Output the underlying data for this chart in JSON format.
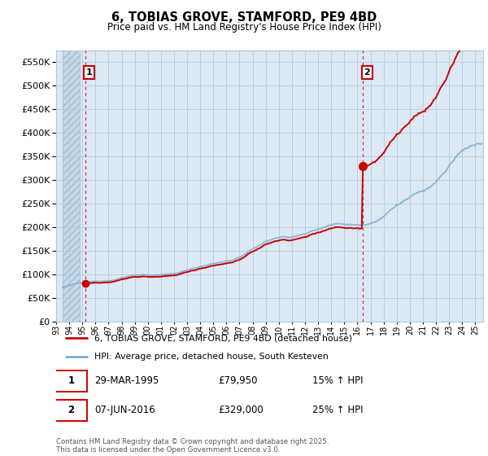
{
  "title": "6, TOBIAS GROVE, STAMFORD, PE9 4BD",
  "subtitle": "Price paid vs. HM Land Registry's House Price Index (HPI)",
  "ylim": [
    0,
    575000
  ],
  "yticks": [
    0,
    50000,
    100000,
    150000,
    200000,
    250000,
    300000,
    350000,
    400000,
    450000,
    500000,
    550000
  ],
  "ytick_labels": [
    "£0",
    "£50K",
    "£100K",
    "£150K",
    "£200K",
    "£250K",
    "£300K",
    "£350K",
    "£400K",
    "£450K",
    "£500K",
    "£550K"
  ],
  "legend_line1": "6, TOBIAS GROVE, STAMFORD, PE9 4BD (detached house)",
  "legend_line2": "HPI: Average price, detached house, South Kesteven",
  "line1_color": "#cc0000",
  "line2_color": "#7aadcc",
  "background_color": "#dce9f5",
  "hatch_area_color": "#c8d8e8",
  "grid_color": "#b8cfe0",
  "t1_year": 1995.23,
  "t1_price": 79950,
  "t2_year": 2016.43,
  "t2_price": 329000,
  "xlim_start": 1993.5,
  "xlim_end": 2025.6,
  "footer": "Contains HM Land Registry data © Crown copyright and database right 2025.\nThis data is licensed under the Open Government Licence v3.0.",
  "ann1_date": "29-MAR-1995",
  "ann1_price": "£79,950",
  "ann1_hpi": "15% ↑ HPI",
  "ann2_date": "07-JUN-2016",
  "ann2_price": "£329,000",
  "ann2_hpi": "25% ↑ HPI"
}
